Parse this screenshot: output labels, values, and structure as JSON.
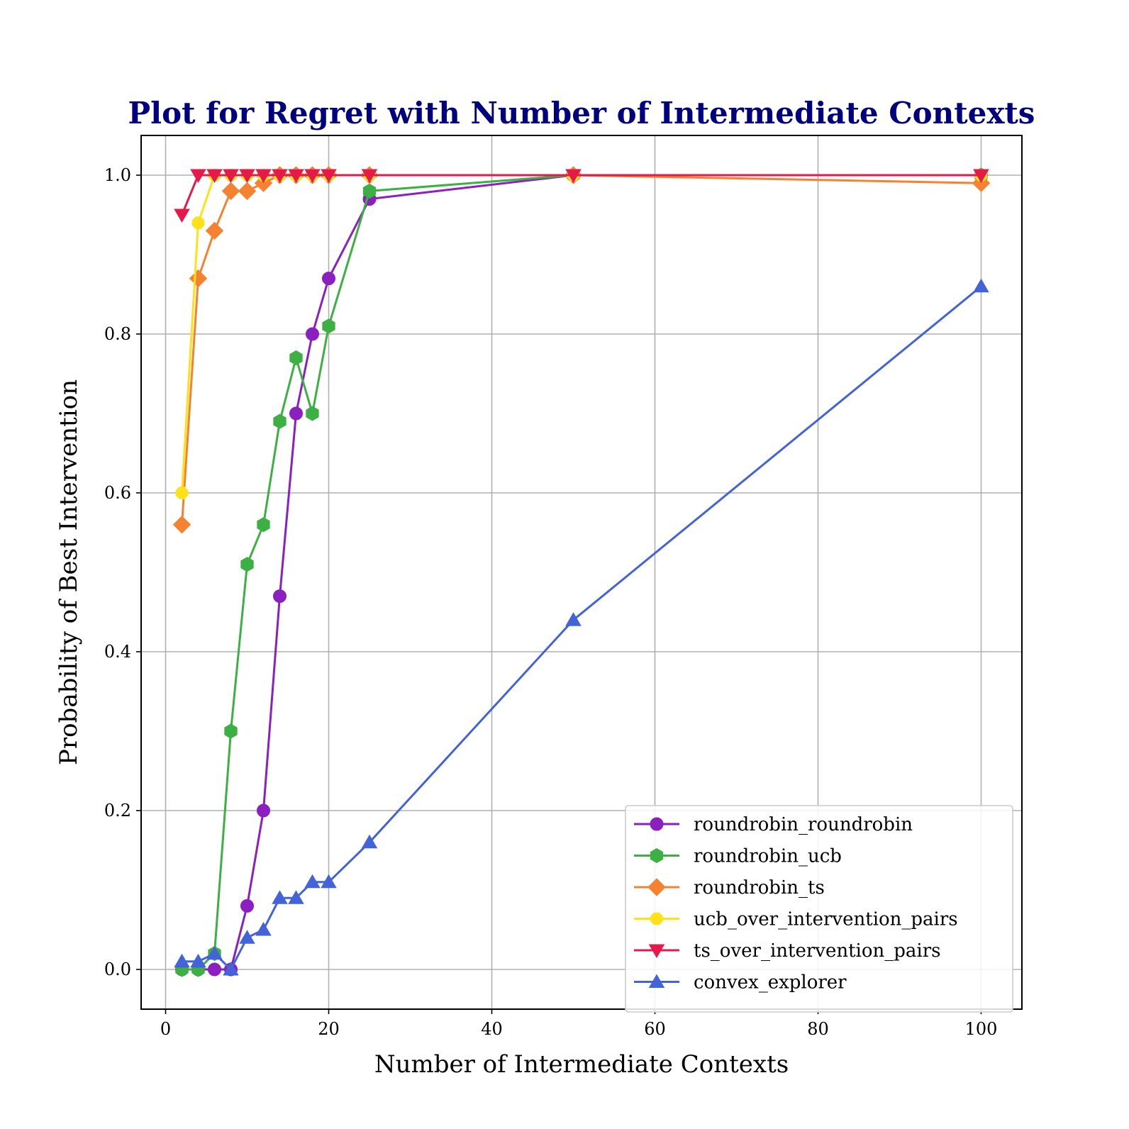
{
  "chart_data": {
    "type": "line",
    "title": "Plot for Regret with Number of Intermediate Contexts",
    "xlabel": "Number of Intermediate Contexts",
    "ylabel": "Probability of Best Intervention",
    "xlim": [
      -3,
      105
    ],
    "ylim": [
      -0.05,
      1.05
    ],
    "xticks": [
      0,
      20,
      40,
      60,
      80,
      100
    ],
    "xtick_labels": [
      "0",
      "20",
      "40",
      "60",
      "80",
      "100"
    ],
    "yticks": [
      0.0,
      0.2,
      0.4,
      0.6,
      0.8,
      1.0
    ],
    "ytick_labels": [
      "0.0",
      "0.2",
      "0.4",
      "0.6",
      "0.8",
      "1.0"
    ],
    "grid": true,
    "legend_position": "lower-right",
    "x": [
      2,
      4,
      6,
      8,
      10,
      12,
      14,
      16,
      18,
      20,
      25,
      50,
      100
    ],
    "series": [
      {
        "name": "roundrobin_roundrobin",
        "color": "#8b1fbf",
        "marker": "circle",
        "values": [
          0.0,
          0.0,
          0.0,
          0.0,
          0.08,
          0.2,
          0.47,
          0.7,
          0.8,
          0.87,
          0.97,
          1.0,
          1.0
        ]
      },
      {
        "name": "roundrobin_ucb",
        "color": "#3cb043",
        "marker": "hexagon",
        "values": [
          0.0,
          0.0,
          0.02,
          0.3,
          0.51,
          0.56,
          0.69,
          0.77,
          0.7,
          0.81,
          0.98,
          1.0,
          1.0
        ]
      },
      {
        "name": "roundrobin_ts",
        "color": "#f58231",
        "marker": "diamond",
        "values": [
          0.56,
          0.87,
          0.93,
          0.98,
          0.98,
          0.99,
          1.0,
          1.0,
          1.0,
          1.0,
          1.0,
          1.0,
          0.99
        ]
      },
      {
        "name": "ucb_over_intervention_pairs",
        "color": "#ffe119",
        "marker": "octagon",
        "values": [
          0.6,
          0.94,
          1.0,
          1.0,
          1.0,
          1.0,
          1.0,
          1.0,
          1.0,
          1.0,
          1.0,
          1.0,
          1.0
        ]
      },
      {
        "name": "ts_over_intervention_pairs",
        "color": "#e6194b",
        "marker": "triangle-down",
        "values": [
          0.95,
          1.0,
          1.0,
          1.0,
          1.0,
          1.0,
          1.0,
          1.0,
          1.0,
          1.0,
          1.0,
          1.0,
          1.0
        ]
      },
      {
        "name": "convex_explorer",
        "color": "#4363d8",
        "marker": "triangle-up",
        "values": [
          0.01,
          0.01,
          0.02,
          0.0,
          0.04,
          0.05,
          0.09,
          0.09,
          0.11,
          0.11,
          0.16,
          0.44,
          0.86
        ]
      }
    ]
  }
}
